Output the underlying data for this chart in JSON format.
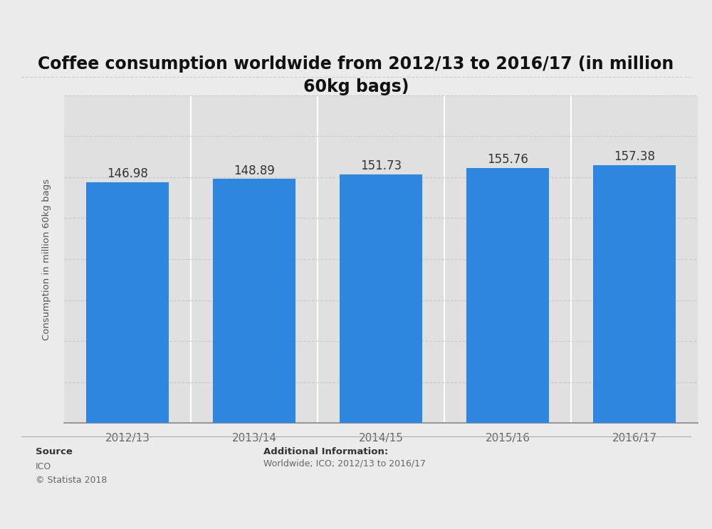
{
  "title": "Coffee consumption worldwide from 2012/13 to 2016/17 (in million\n60kg bags)",
  "categories": [
    "2012/13",
    "2013/14",
    "2014/15",
    "2015/16",
    "2016/17"
  ],
  "values": [
    146.98,
    148.89,
    151.73,
    155.76,
    157.38
  ],
  "bar_color": "#2e86de",
  "ylabel": "Consumption in million 60kg bags",
  "ylim": [
    0,
    200
  ],
  "ytick_positions": [
    0,
    25,
    50,
    75,
    100,
    125,
    150,
    175,
    200
  ],
  "background_color": "#ebebeb",
  "plot_background_color": "#f2f2f2",
  "col_background_color": "#e0e0e0",
  "grid_color": "#cccccc",
  "title_fontsize": 17,
  "label_fontsize": 9.5,
  "tick_fontsize": 11,
  "bar_label_fontsize": 12,
  "source_label": "Source",
  "source_body": "ICO\n© Statista 2018",
  "additional_label": "Additional Information:",
  "additional_body": "Worldwide; ICO; 2012/13 to 2016/17"
}
